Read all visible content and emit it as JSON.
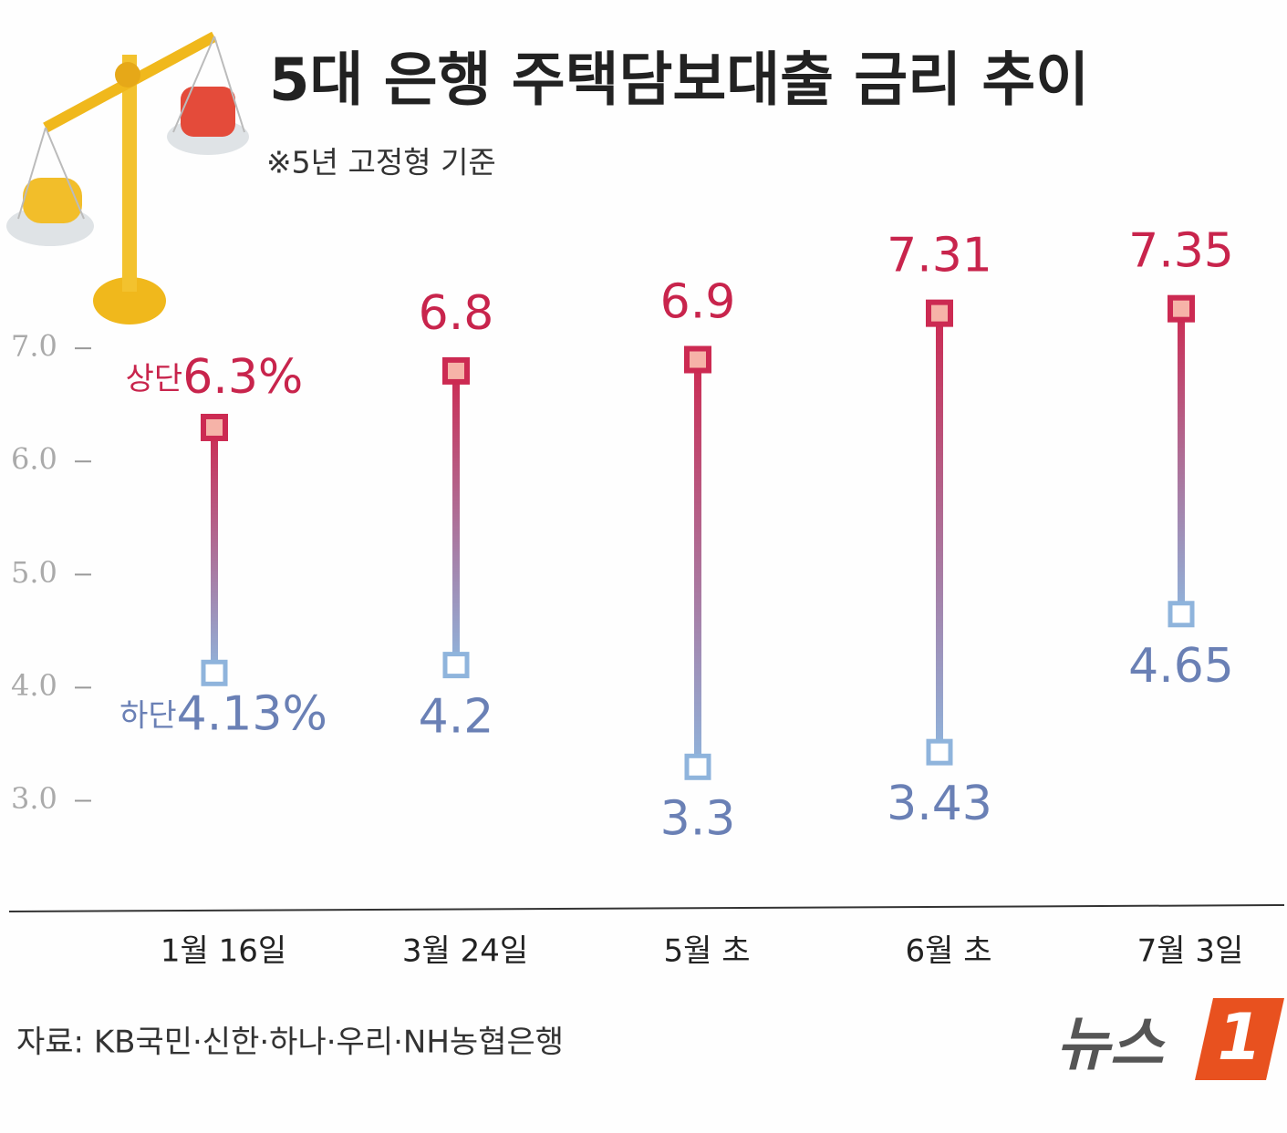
{
  "chart_data": {
    "type": "range",
    "title": "5대 은행 주택담보대출 금리 추이",
    "subtitle": "※5년 고정형 기준",
    "categories": [
      "1월 16일",
      "3월 24일",
      "5월 초",
      "6월 초",
      "7월 3일"
    ],
    "series": [
      {
        "name": "상단",
        "color": "#cc2a52",
        "values": [
          6.3,
          6.8,
          6.9,
          7.31,
          7.35
        ],
        "value_labels": [
          "6.3%",
          "6.8",
          "6.9",
          "7.31",
          "7.35"
        ]
      },
      {
        "name": "하단",
        "color": "#8fb4dc",
        "values": [
          4.13,
          4.2,
          3.3,
          3.43,
          4.65
        ],
        "value_labels": [
          "4.13%",
          "4.2",
          "3.3",
          "3.43",
          "4.65"
        ]
      }
    ],
    "ylim": [
      2.4,
      8.0
    ],
    "yticks": [
      {
        "value": 3,
        "label": "3.0"
      },
      {
        "value": 4,
        "label": "4.0"
      },
      {
        "value": 5,
        "label": "5.0"
      },
      {
        "value": 6,
        "label": "6.0"
      },
      {
        "value": 7,
        "label": "7.0"
      }
    ],
    "source": "자료: KB국민·신한·하나·우리·NH농협은행",
    "logo": {
      "text": "뉴스",
      "mark": "1"
    }
  }
}
